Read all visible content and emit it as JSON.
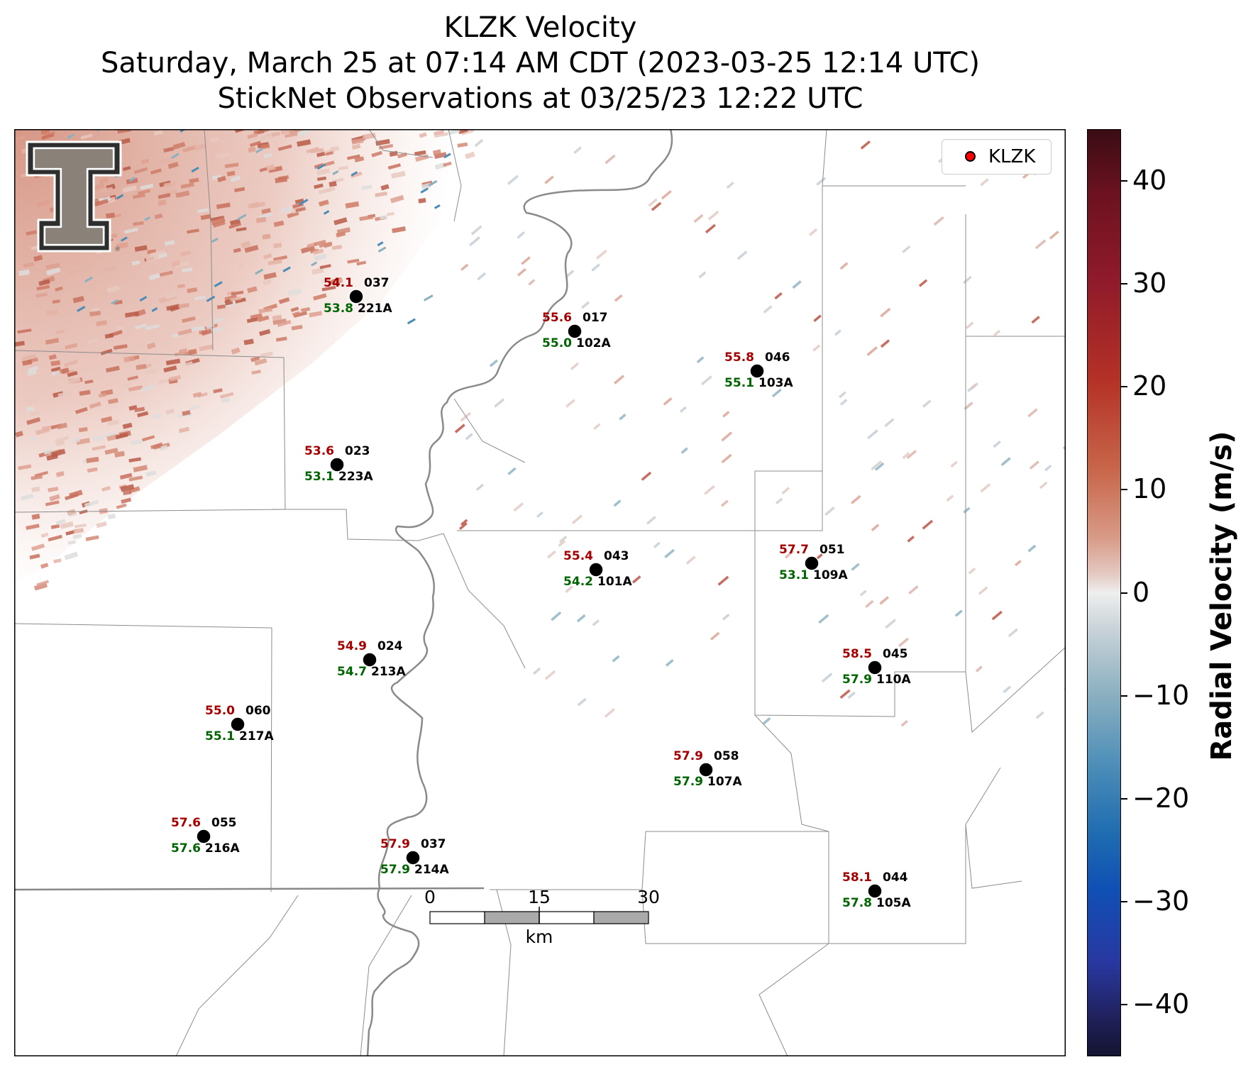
{
  "title": {
    "line1": "KLZK Velocity",
    "line2": "Saturday, March 25 at 07:14 AM CDT (2023-03-25 12:14 UTC)",
    "line3": "StickNet Observations at 03/25/23 12:22 UTC"
  },
  "legend": {
    "label": "KLZK",
    "marker_color": "#ff0000"
  },
  "colorbar": {
    "label": "Radial Velocity (m/s)",
    "range": [
      -45,
      45
    ],
    "ticks": [
      "40",
      "30",
      "20",
      "10",
      "0",
      "−10",
      "−20",
      "−30",
      "−40"
    ]
  },
  "scalebar": {
    "labels": [
      "0",
      "15",
      "30"
    ],
    "unit": "km"
  },
  "colors": {
    "temperature": "#a50000",
    "dewpoint": "#006400",
    "river": "#888888"
  },
  "logo": "texas-tech-double-t",
  "stations": [
    {
      "temp": "54.1",
      "dew": "53.8",
      "id1": "037",
      "id2": "221A"
    },
    {
      "temp": "55.6",
      "dew": "55.0",
      "id1": "017",
      "id2": "102A"
    },
    {
      "temp": "55.8",
      "dew": "55.1",
      "id1": "046",
      "id2": "103A"
    },
    {
      "temp": "53.6",
      "dew": "53.1",
      "id1": "023",
      "id2": "223A"
    },
    {
      "temp": "55.4",
      "dew": "54.2",
      "id1": "043",
      "id2": "101A"
    },
    {
      "temp": "57.7",
      "dew": "53.1",
      "id1": "051",
      "id2": "109A"
    },
    {
      "temp": "54.9",
      "dew": "54.7",
      "id1": "024",
      "id2": "213A"
    },
    {
      "temp": "58.5",
      "dew": "57.9",
      "id1": "045",
      "id2": "110A"
    },
    {
      "temp": "55.0",
      "dew": "55.1",
      "id1": "060",
      "id2": "217A"
    },
    {
      "temp": "57.9",
      "dew": "57.9",
      "id1": "058",
      "id2": "107A"
    },
    {
      "temp": "57.6",
      "dew": "57.6",
      "id1": "055",
      "id2": "216A"
    },
    {
      "temp": "57.9",
      "dew": "57.9",
      "id1": "037",
      "id2": "214A"
    },
    {
      "temp": "58.1",
      "dew": "57.8",
      "id1": "044",
      "id2": "105A"
    }
  ]
}
